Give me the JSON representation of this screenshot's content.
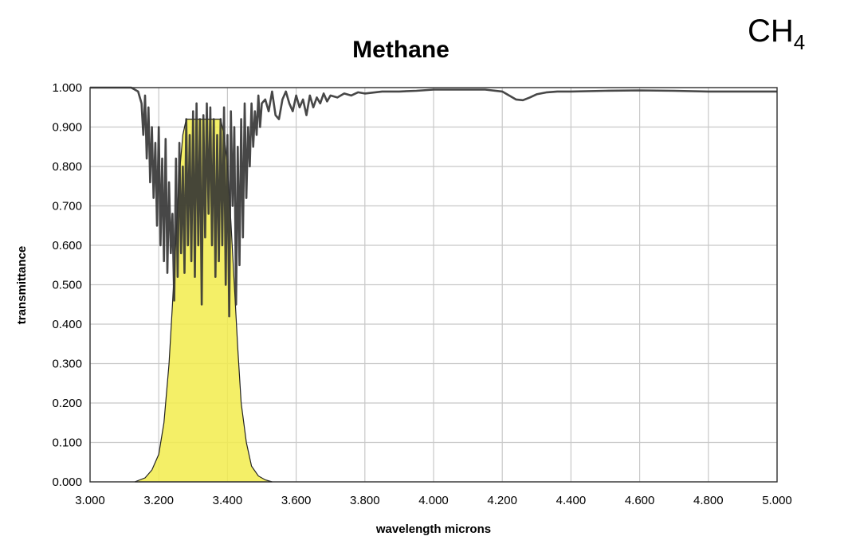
{
  "corner_label": {
    "main": "CH",
    "sub": "4"
  },
  "chart_data": {
    "type": "line",
    "title": "Methane",
    "xlabel": "wavelength microns",
    "ylabel": "transmittance",
    "xlim": [
      3.0,
      5.0
    ],
    "ylim": [
      0.0,
      1.0
    ],
    "grid": true,
    "legend": "none",
    "x_ticks": [
      "3.000",
      "3.200",
      "3.400",
      "3.600",
      "3.800",
      "4.000",
      "4.200",
      "4.400",
      "4.600",
      "4.800",
      "5.000"
    ],
    "y_ticks": [
      "0.000",
      "0.100",
      "0.200",
      "0.300",
      "0.400",
      "0.500",
      "0.600",
      "0.700",
      "0.800",
      "0.900",
      "1.000"
    ],
    "colors": {
      "transmittance": "#333333",
      "filter": "#f2ec4c",
      "grid": "#c8c8c8"
    },
    "series": [
      {
        "x": [
          3.0,
          3.12,
          3.14,
          3.15,
          3.155,
          3.16,
          3.165,
          3.17,
          3.175,
          3.18,
          3.185,
          3.19,
          3.195,
          3.2,
          3.205,
          3.21,
          3.215,
          3.22,
          3.225,
          3.23,
          3.235,
          3.24,
          3.245,
          3.25,
          3.255,
          3.26,
          3.265,
          3.27,
          3.275,
          3.28,
          3.285,
          3.29,
          3.295,
          3.3,
          3.305,
          3.31,
          3.315,
          3.32,
          3.325,
          3.33,
          3.335,
          3.34,
          3.345,
          3.35,
          3.355,
          3.36,
          3.365,
          3.37,
          3.375,
          3.38,
          3.385,
          3.39,
          3.395,
          3.4,
          3.405,
          3.41,
          3.415,
          3.42,
          3.425,
          3.43,
          3.435,
          3.44,
          3.445,
          3.45,
          3.455,
          3.46,
          3.465,
          3.47,
          3.475,
          3.48,
          3.485,
          3.49,
          3.495,
          3.5,
          3.51,
          3.52,
          3.53,
          3.54,
          3.55,
          3.56,
          3.57,
          3.58,
          3.59,
          3.6,
          3.61,
          3.62,
          3.63,
          3.64,
          3.65,
          3.66,
          3.67,
          3.68,
          3.69,
          3.7,
          3.72,
          3.74,
          3.76,
          3.78,
          3.8,
          3.85,
          3.9,
          3.95,
          4.0,
          4.05,
          4.1,
          4.15,
          4.2,
          4.22,
          4.24,
          4.26,
          4.28,
          4.3,
          4.33,
          4.36,
          4.4,
          4.5,
          4.6,
          4.7,
          4.8,
          4.9,
          5.0
        ],
        "y": [
          1.0,
          1.0,
          0.99,
          0.96,
          0.88,
          0.98,
          0.82,
          0.95,
          0.76,
          0.9,
          0.72,
          0.86,
          0.65,
          0.9,
          0.6,
          0.82,
          0.56,
          0.87,
          0.53,
          0.76,
          0.58,
          0.68,
          0.46,
          0.82,
          0.52,
          0.86,
          0.58,
          0.8,
          0.53,
          0.92,
          0.6,
          0.88,
          0.56,
          0.94,
          0.52,
          0.96,
          0.6,
          0.92,
          0.45,
          0.93,
          0.62,
          0.96,
          0.68,
          0.95,
          0.6,
          0.92,
          0.52,
          0.88,
          0.56,
          0.92,
          0.6,
          0.95,
          0.5,
          0.88,
          0.42,
          0.94,
          0.7,
          0.9,
          0.45,
          0.85,
          0.55,
          0.92,
          0.62,
          0.96,
          0.72,
          0.9,
          0.8,
          0.96,
          0.85,
          0.94,
          0.88,
          0.98,
          0.9,
          0.96,
          0.97,
          0.94,
          0.99,
          0.93,
          0.92,
          0.97,
          0.99,
          0.96,
          0.94,
          0.98,
          0.95,
          0.97,
          0.93,
          0.98,
          0.95,
          0.975,
          0.96,
          0.985,
          0.965,
          0.98,
          0.975,
          0.985,
          0.98,
          0.988,
          0.985,
          0.99,
          0.99,
          0.992,
          0.995,
          0.995,
          0.995,
          0.995,
          0.99,
          0.98,
          0.97,
          0.968,
          0.975,
          0.983,
          0.988,
          0.99,
          0.99,
          0.992,
          0.993,
          0.992,
          0.99,
          0.99,
          0.99
        ]
      },
      {
        "x": [
          3.13,
          3.16,
          3.18,
          3.2,
          3.215,
          3.23,
          3.24,
          3.25,
          3.26,
          3.27,
          3.28,
          3.3,
          3.32,
          3.34,
          3.36,
          3.38,
          3.39,
          3.4,
          3.41,
          3.42,
          3.43,
          3.44,
          3.455,
          3.47,
          3.49,
          3.51,
          3.53
        ],
        "y": [
          0.0,
          0.01,
          0.03,
          0.07,
          0.15,
          0.3,
          0.45,
          0.62,
          0.78,
          0.88,
          0.92,
          0.92,
          0.92,
          0.92,
          0.92,
          0.92,
          0.88,
          0.8,
          0.66,
          0.5,
          0.34,
          0.2,
          0.1,
          0.04,
          0.015,
          0.005,
          0.0
        ]
      }
    ]
  }
}
